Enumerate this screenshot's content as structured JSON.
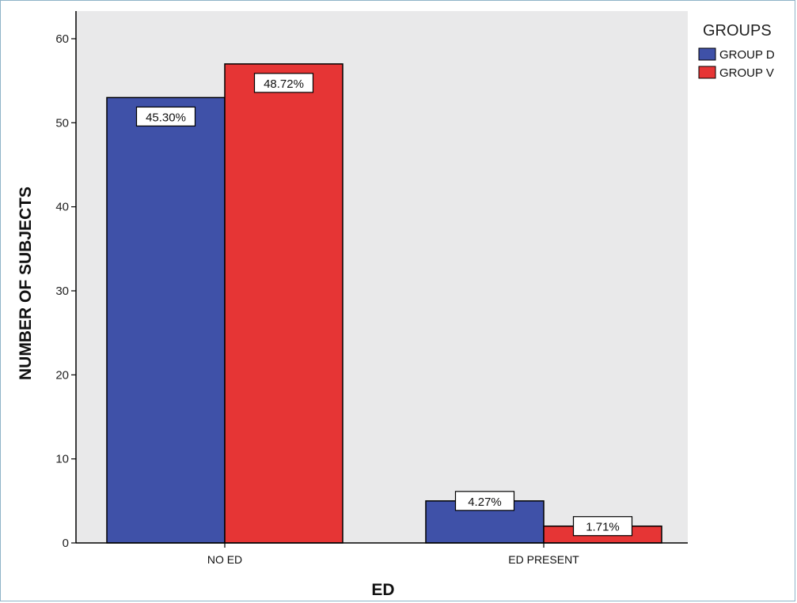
{
  "chart_data": {
    "type": "bar",
    "xlabel": "ED",
    "ylabel": "NUMBER OF SUBJECTS",
    "ylim": [
      0,
      60
    ],
    "yticks": [
      0,
      10,
      20,
      30,
      40,
      50,
      60
    ],
    "categories": [
      "NO ED",
      "ED PRESENT"
    ],
    "series": [
      {
        "name": "GROUP D",
        "color": "#3f51a8",
        "values": [
          53,
          5
        ],
        "data_labels": [
          "45.30%",
          "4.27%"
        ]
      },
      {
        "name": "GROUP V",
        "color": "#e63535",
        "values": [
          57,
          2
        ],
        "data_labels": [
          "48.72%",
          "1.71%"
        ]
      }
    ],
    "legend": {
      "title": "GROUPS",
      "placement": "top-right"
    },
    "plot_background": "#e9e9ea",
    "grid": false
  }
}
